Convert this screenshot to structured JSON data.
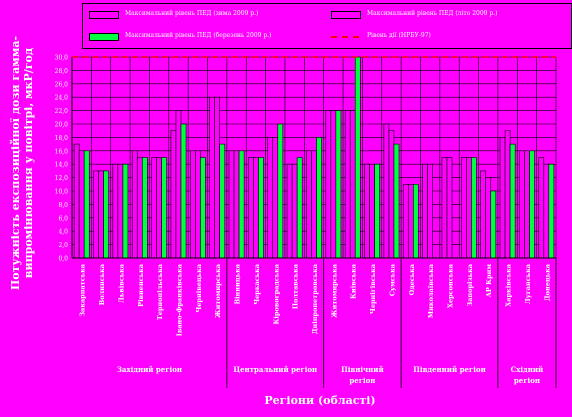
{
  "legend": {
    "items": [
      {
        "label": "Максимальний рівень ПЕД (зима 2009 р.)",
        "kind": "swatch",
        "color": "#ff00ff"
      },
      {
        "label": "Максимальний рівень ПЕД (літо 2009 р.)",
        "kind": "swatch",
        "color": "#ff00ff"
      },
      {
        "label": "Максимальний рівень ПЕД (березень 2009 р.)",
        "kind": "swatch",
        "color": "#00ff40"
      },
      {
        "label": "Рівень дії (НРБУ-97)",
        "kind": "line",
        "color": "#ff0000"
      }
    ]
  },
  "chart_data": {
    "type": "bar",
    "ylabel": "Потужність експозиційної дози гамма-випромінювання у повітрі, мкР/год",
    "xlabel": "Регіони (області)",
    "ylim": [
      0,
      30
    ],
    "yticks": [
      "0,0",
      "2,0",
      "4,0",
      "6,0",
      "8,0",
      "10,0",
      "12,0",
      "14,0",
      "16,0",
      "18,0",
      "20,0",
      "22,0",
      "24,0",
      "26,0",
      "28,0",
      "30,0"
    ],
    "grid": true,
    "reference_line": {
      "name": "Рівень дії (НРБУ-97)",
      "value": 30
    },
    "categories": [
      "Закарпатська",
      "Волинська",
      "Львівська",
      "Рівненська",
      "Тернопільська",
      "Івано-Франківська",
      "Чернівецька",
      "Житомирська",
      "Вінницька",
      "Черкаська",
      "Кіровоградська",
      "Полтавська",
      "Дніпропетровська",
      "Житомирська",
      "Київська",
      "Чернігівська",
      "Сумська",
      "Одеська",
      "Миколаївська",
      "Херсонська",
      "Запорізька",
      "АР Крим",
      "Харківська",
      "Луганська",
      "Донецька"
    ],
    "series": [
      {
        "name": "Максимальний рівень ПЕД (зима 2009 р.)",
        "color": "#ff00ff",
        "values": [
          17,
          13,
          14,
          16,
          15,
          19,
          16,
          24,
          16,
          15,
          18,
          14,
          16,
          22,
          22,
          14,
          20,
          11,
          14,
          15,
          15,
          13,
          18,
          16,
          15
        ]
      },
      {
        "name": "Максимальний рівень ПЕД (літо 2009 р.)",
        "color": "#ff00ff",
        "values": [
          16,
          13,
          14,
          15,
          15,
          22,
          16,
          24,
          16,
          15,
          18,
          14,
          16,
          22,
          22,
          14,
          19,
          11,
          14,
          15,
          15,
          12,
          19,
          16,
          14
        ]
      },
      {
        "name": "Максимальний рівень ПЕД (березень 2009 р.)",
        "color": "#00ff40",
        "values": [
          16,
          13,
          14,
          15,
          15,
          20,
          15,
          17,
          16,
          15,
          20,
          15,
          18,
          22,
          30,
          14,
          17,
          11,
          null,
          null,
          15,
          10,
          17,
          16,
          14
        ]
      }
    ],
    "regions": [
      {
        "label": "Західний регіон",
        "from": 0,
        "to": 7
      },
      {
        "label": "Центральний регіон",
        "from": 8,
        "to": 12
      },
      {
        "label": "Північний регіон",
        "from": 13,
        "to": 16
      },
      {
        "label": "Південний регіон",
        "from": 17,
        "to": 21
      },
      {
        "label": "Східний регіон",
        "from": 22,
        "to": 24
      }
    ]
  }
}
